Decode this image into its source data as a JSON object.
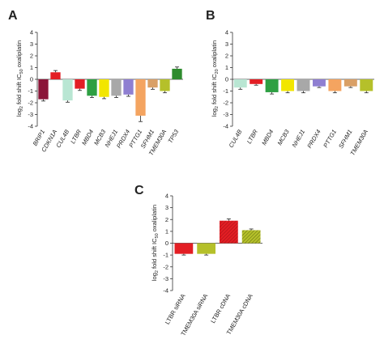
{
  "chart_data": [
    {
      "panel": "A",
      "type": "bar",
      "categories": [
        "BRIP1",
        "CDKN1A",
        "CUL4B",
        "LTBR",
        "MBD4",
        "MCB3",
        "NHEJ1",
        "PRDX4",
        "PTTG1",
        "SFHM1",
        "TMEM30A",
        "TP53"
      ],
      "values": [
        -1.7,
        0.6,
        -1.8,
        -0.8,
        -1.4,
        -1.5,
        -1.4,
        -1.3,
        -3.1,
        -0.7,
        -1.0,
        0.9
      ],
      "errors": [
        0.15,
        0.15,
        0.15,
        0.15,
        0.15,
        0.15,
        0.15,
        0.15,
        0.5,
        0.15,
        0.15,
        0.15
      ],
      "colors": [
        "#8b1538",
        "#e31e24",
        "#b9e6d3",
        "#e31e24",
        "#2ea043",
        "#f2e600",
        "#a8a8a8",
        "#8f7fd1",
        "#f4a460",
        "#d9a066",
        "#b5c02a",
        "#2e8b2e"
      ],
      "ylabel": "log2 fold shift IC50 oxaliplatin",
      "ylim": [
        -4,
        4
      ],
      "yticks": [
        "4",
        "3",
        "2",
        "1",
        "0",
        "-1",
        "-2",
        "-3",
        "-4"
      ],
      "italic_labels": true
    },
    {
      "panel": "B",
      "type": "bar",
      "categories": [
        "CUL4B",
        "LTBR",
        "MBD4",
        "MCB3",
        "NHEJ1",
        "PRDX4",
        "PTTG1",
        "SFHM1",
        "TMEM30A"
      ],
      "values": [
        -0.7,
        -0.4,
        -1.1,
        -1.0,
        -1.0,
        -0.6,
        -1.0,
        -0.6,
        -1.0
      ],
      "errors": [
        0.15,
        0.1,
        0.15,
        0.15,
        0.15,
        0.1,
        0.15,
        0.1,
        0.15
      ],
      "colors": [
        "#b9e6d3",
        "#e31e24",
        "#2ea043",
        "#f2e600",
        "#a8a8a8",
        "#8f7fd1",
        "#f4a460",
        "#d9a066",
        "#b5c02a"
      ],
      "ylabel": "log2 fold shift IC20 oxaliplatin",
      "ylim": [
        -4,
        4
      ],
      "yticks": [
        "4",
        "3",
        "2",
        "1",
        "0",
        "-1",
        "-2",
        "-3",
        "-4"
      ],
      "italic_labels": true
    },
    {
      "panel": "C",
      "type": "bar",
      "categories": [
        "LTBR siRNA",
        "TMEM30A siRNA",
        "LTBR cDNA",
        "TMEM30A cDNA"
      ],
      "values": [
        -0.9,
        -0.9,
        1.9,
        1.1
      ],
      "errors": [
        0.1,
        0.1,
        0.15,
        0.1
      ],
      "colors": [
        "#e31e24",
        "#b5c02a",
        "#e31e24",
        "#b5c02a"
      ],
      "patterns": [
        false,
        false,
        true,
        true
      ],
      "ylabel": "log2 fold shift IC50 oxaliplatin",
      "ylim": [
        -4,
        4
      ],
      "yticks": [
        "4",
        "3",
        "2",
        "1",
        "0",
        "-1",
        "-2",
        "-3",
        "-4"
      ],
      "italic_labels": false
    }
  ]
}
